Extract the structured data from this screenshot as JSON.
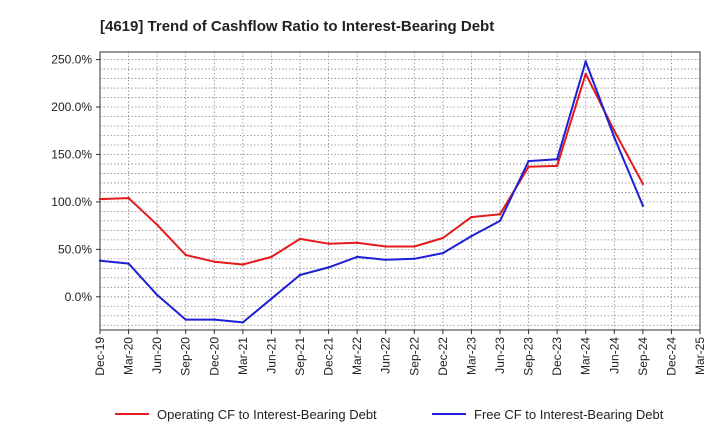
{
  "chart_data": {
    "type": "line",
    "title": "[4619]  Trend of Cashflow Ratio to Interest-Bearing Debt",
    "xlabel": "",
    "ylabel": "",
    "x_ticks": [
      "Dec-19",
      "Mar-20",
      "Jun-20",
      "Sep-20",
      "Dec-20",
      "Mar-21",
      "Jun-21",
      "Sep-21",
      "Dec-21",
      "Mar-22",
      "Jun-22",
      "Sep-22",
      "Dec-22",
      "Mar-23",
      "Jun-23",
      "Sep-23",
      "Dec-23",
      "Mar-24",
      "Jun-24",
      "Sep-24",
      "Dec-24",
      "Mar-25"
    ],
    "y_ticks": [
      "0.0%",
      "50.0%",
      "100.0%",
      "150.0%",
      "200.0%",
      "250.0%"
    ],
    "ylim": [
      -35,
      258
    ],
    "grid": true,
    "legend_position": "bottom",
    "series": [
      {
        "name": "Operating CF to Interest-Bearing Debt",
        "color": "#e41a1c",
        "values": [
          103,
          104,
          76,
          44,
          37,
          34,
          42,
          61,
          56,
          57,
          53,
          53,
          62,
          84,
          87,
          137,
          138,
          235,
          175,
          119
        ]
      },
      {
        "name": "Free CF to Interest-Bearing Debt",
        "color": "#1f1fd6",
        "values": [
          38,
          35,
          2,
          -24,
          -24,
          -27,
          -2,
          23,
          31,
          42,
          39,
          40,
          46,
          64,
          80,
          143,
          145,
          248,
          168,
          96
        ]
      }
    ]
  }
}
